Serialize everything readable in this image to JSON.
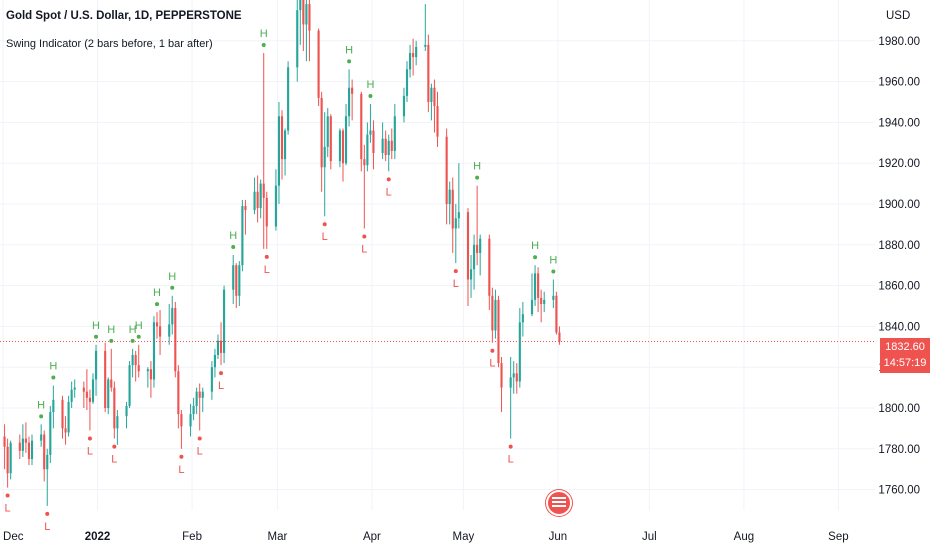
{
  "header": {
    "title": "Gold Spot / U.S. Dollar, 1D, PEPPERSTONE",
    "indicator": "Swing Indicator (2 bars before, 1 bar after)"
  },
  "axis": {
    "currency": "USD",
    "y_ticks": [
      "1980.00",
      "1960.00",
      "1940.00",
      "1920.00",
      "1900.00",
      "1880.00",
      "1860.00",
      "1840.00",
      "1820.00",
      "1800.00",
      "1780.00",
      "1760.00"
    ],
    "x_ticks": [
      "Dec",
      "2022",
      "Feb",
      "Mar",
      "Apr",
      "May",
      "Jun",
      "Jul",
      "Aug",
      "Sep"
    ]
  },
  "last_price": {
    "price": "1832.60",
    "countdown": "14:57:19"
  },
  "colors": {
    "up": "#26a69a",
    "down": "#ef5350",
    "high_label": "#4caf50",
    "low_label": "#ef5350",
    "grid": "#f0f3fa",
    "text": "#131722"
  },
  "chart_data": {
    "type": "candlestick",
    "title": "Gold Spot / U.S. Dollar, 1D, PEPPERSTONE",
    "currency": "USD",
    "ylim": [
      1750,
      2000
    ],
    "x_range": [
      "2021-11-30",
      "2022-09-13"
    ],
    "x_ticks": [
      "Dec",
      "2022",
      "Feb",
      "Mar",
      "Apr",
      "May",
      "Jun",
      "Jul",
      "Aug",
      "Sep"
    ],
    "last_price": 1832.6,
    "candles": [
      {
        "date": "2021-12-01",
        "o": 1786,
        "h": 1792,
        "l": 1770,
        "c": 1781
      },
      {
        "date": "2021-12-02",
        "o": 1781,
        "h": 1785,
        "l": 1761,
        "c": 1768
      },
      {
        "date": "2021-12-03",
        "o": 1768,
        "h": 1784,
        "l": 1765,
        "c": 1783
      },
      {
        "date": "2021-12-06",
        "o": 1783,
        "h": 1787,
        "l": 1775,
        "c": 1779
      },
      {
        "date": "2021-12-07",
        "o": 1779,
        "h": 1792,
        "l": 1776,
        "c": 1785
      },
      {
        "date": "2021-12-08",
        "o": 1785,
        "h": 1793,
        "l": 1778,
        "c": 1783
      },
      {
        "date": "2021-12-09",
        "o": 1783,
        "h": 1786,
        "l": 1772,
        "c": 1775
      },
      {
        "date": "2021-12-10",
        "o": 1775,
        "h": 1787,
        "l": 1772,
        "c": 1784
      },
      {
        "date": "2021-12-13",
        "o": 1784,
        "h": 1792,
        "l": 1781,
        "c": 1787
      },
      {
        "date": "2021-12-14",
        "o": 1787,
        "h": 1789,
        "l": 1764,
        "c": 1770
      },
      {
        "date": "2021-12-15",
        "o": 1770,
        "h": 1780,
        "l": 1752,
        "c": 1777
      },
      {
        "date": "2021-12-16",
        "o": 1777,
        "h": 1801,
        "l": 1773,
        "c": 1798
      },
      {
        "date": "2021-12-17",
        "o": 1798,
        "h": 1811,
        "l": 1790,
        "c": 1804
      },
      {
        "date": "2021-12-20",
        "o": 1804,
        "h": 1806,
        "l": 1785,
        "c": 1790
      },
      {
        "date": "2021-12-21",
        "o": 1790,
        "h": 1796,
        "l": 1782,
        "c": 1788
      },
      {
        "date": "2021-12-22",
        "o": 1788,
        "h": 1806,
        "l": 1786,
        "c": 1803
      },
      {
        "date": "2021-12-23",
        "o": 1803,
        "h": 1813,
        "l": 1800,
        "c": 1809
      },
      {
        "date": "2021-12-24",
        "o": 1809,
        "h": 1814,
        "l": 1805,
        "c": 1810
      },
      {
        "date": "2021-12-27",
        "o": 1810,
        "h": 1813,
        "l": 1800,
        "c": 1808
      },
      {
        "date": "2021-12-28",
        "o": 1808,
        "h": 1819,
        "l": 1799,
        "c": 1805
      },
      {
        "date": "2021-12-29",
        "o": 1805,
        "h": 1809,
        "l": 1789,
        "c": 1803
      },
      {
        "date": "2021-12-30",
        "o": 1803,
        "h": 1817,
        "l": 1802,
        "c": 1814
      },
      {
        "date": "2021-12-31",
        "o": 1814,
        "h": 1831,
        "l": 1806,
        "c": 1828
      },
      {
        "date": "2022-01-03",
        "o": 1828,
        "h": 1832,
        "l": 1798,
        "c": 1800
      },
      {
        "date": "2022-01-04",
        "o": 1800,
        "h": 1815,
        "l": 1797,
        "c": 1814
      },
      {
        "date": "2022-01-05",
        "o": 1814,
        "h": 1829,
        "l": 1808,
        "c": 1810
      },
      {
        "date": "2022-01-06",
        "o": 1810,
        "h": 1813,
        "l": 1785,
        "c": 1790
      },
      {
        "date": "2022-01-07",
        "o": 1790,
        "h": 1799,
        "l": 1782,
        "c": 1796
      },
      {
        "date": "2022-01-10",
        "o": 1796,
        "h": 1803,
        "l": 1790,
        "c": 1801
      },
      {
        "date": "2022-01-11",
        "o": 1801,
        "h": 1823,
        "l": 1800,
        "c": 1821
      },
      {
        "date": "2022-01-12",
        "o": 1821,
        "h": 1829,
        "l": 1815,
        "c": 1826
      },
      {
        "date": "2022-01-13",
        "o": 1826,
        "h": 1828,
        "l": 1813,
        "c": 1821
      },
      {
        "date": "2022-01-14",
        "o": 1821,
        "h": 1831,
        "l": 1815,
        "c": 1818
      },
      {
        "date": "2022-01-17",
        "o": 1818,
        "h": 1820,
        "l": 1810,
        "c": 1819
      },
      {
        "date": "2022-01-18",
        "o": 1819,
        "h": 1823,
        "l": 1805,
        "c": 1814
      },
      {
        "date": "2022-01-19",
        "o": 1814,
        "h": 1845,
        "l": 1810,
        "c": 1842
      },
      {
        "date": "2022-01-20",
        "o": 1842,
        "h": 1847,
        "l": 1834,
        "c": 1840
      },
      {
        "date": "2022-01-21",
        "o": 1840,
        "h": 1848,
        "l": 1826,
        "c": 1835
      },
      {
        "date": "2022-01-24",
        "o": 1835,
        "h": 1851,
        "l": 1831,
        "c": 1841
      },
      {
        "date": "2022-01-25",
        "o": 1841,
        "h": 1855,
        "l": 1836,
        "c": 1849
      },
      {
        "date": "2022-01-26",
        "o": 1849,
        "h": 1852,
        "l": 1815,
        "c": 1818
      },
      {
        "date": "2022-01-27",
        "o": 1818,
        "h": 1821,
        "l": 1790,
        "c": 1797
      },
      {
        "date": "2022-01-28",
        "o": 1797,
        "h": 1799,
        "l": 1780,
        "c": 1791
      },
      {
        "date": "2022-01-31",
        "o": 1791,
        "h": 1802,
        "l": 1786,
        "c": 1797
      },
      {
        "date": "2022-02-01",
        "o": 1797,
        "h": 1805,
        "l": 1794,
        "c": 1801
      },
      {
        "date": "2022-02-02",
        "o": 1801,
        "h": 1810,
        "l": 1797,
        "c": 1808
      },
      {
        "date": "2022-02-03",
        "o": 1808,
        "h": 1812,
        "l": 1789,
        "c": 1805
      },
      {
        "date": "2022-02-04",
        "o": 1805,
        "h": 1810,
        "l": 1798,
        "c": 1808
      },
      {
        "date": "2022-02-07",
        "o": 1808,
        "h": 1823,
        "l": 1804,
        "c": 1820
      },
      {
        "date": "2022-02-08",
        "o": 1820,
        "h": 1829,
        "l": 1815,
        "c": 1826
      },
      {
        "date": "2022-02-09",
        "o": 1826,
        "h": 1836,
        "l": 1824,
        "c": 1833
      },
      {
        "date": "2022-02-10",
        "o": 1833,
        "h": 1842,
        "l": 1821,
        "c": 1827
      },
      {
        "date": "2022-02-11",
        "o": 1827,
        "h": 1860,
        "l": 1822,
        "c": 1858
      },
      {
        "date": "2022-02-14",
        "o": 1858,
        "h": 1875,
        "l": 1851,
        "c": 1870
      },
      {
        "date": "2022-02-15",
        "o": 1870,
        "h": 1871,
        "l": 1849,
        "c": 1855
      },
      {
        "date": "2022-02-16",
        "o": 1855,
        "h": 1872,
        "l": 1850,
        "c": 1870
      },
      {
        "date": "2022-02-17",
        "o": 1870,
        "h": 1902,
        "l": 1867,
        "c": 1899
      },
      {
        "date": "2022-02-18",
        "o": 1899,
        "h": 1902,
        "l": 1885,
        "c": 1897
      },
      {
        "date": "2022-02-21",
        "o": 1897,
        "h": 1913,
        "l": 1895,
        "c": 1906
      },
      {
        "date": "2022-02-22",
        "o": 1906,
        "h": 1914,
        "l": 1891,
        "c": 1898
      },
      {
        "date": "2022-02-23",
        "o": 1898,
        "h": 1912,
        "l": 1893,
        "c": 1910
      },
      {
        "date": "2022-02-24",
        "o": 1910,
        "h": 1974,
        "l": 1878,
        "c": 1903
      },
      {
        "date": "2022-02-25",
        "o": 1903,
        "h": 1906,
        "l": 1878,
        "c": 1889
      },
      {
        "date": "2022-02-28",
        "o": 1889,
        "h": 1917,
        "l": 1887,
        "c": 1909
      },
      {
        "date": "2022-03-01",
        "o": 1909,
        "h": 1950,
        "l": 1900,
        "c": 1943
      },
      {
        "date": "2022-03-02",
        "o": 1943,
        "h": 1946,
        "l": 1912,
        "c": 1922
      },
      {
        "date": "2022-03-03",
        "o": 1922,
        "h": 1937,
        "l": 1914,
        "c": 1936
      },
      {
        "date": "2022-03-04",
        "o": 1936,
        "h": 1970,
        "l": 1934,
        "c": 1967
      },
      {
        "date": "2022-03-07",
        "o": 1967,
        "h": 2001,
        "l": 1960,
        "c": 1995
      },
      {
        "date": "2022-03-08",
        "o": 1995,
        "h": 2002,
        "l": 1978,
        "c": 2000
      },
      {
        "date": "2022-03-09",
        "o": 2000,
        "h": 2000,
        "l": 1975,
        "c": 1988
      },
      {
        "date": "2022-03-10",
        "o": 1988,
        "h": 2001,
        "l": 1970,
        "c": 1998
      },
      {
        "date": "2022-03-11",
        "o": 1998,
        "h": 2000,
        "l": 1970,
        "c": 1985
      },
      {
        "date": "2022-03-14",
        "o": 1985,
        "h": 1986,
        "l": 1948,
        "c": 1952
      },
      {
        "date": "2022-03-15",
        "o": 1952,
        "h": 1955,
        "l": 1906,
        "c": 1918
      },
      {
        "date": "2022-03-16",
        "o": 1918,
        "h": 1945,
        "l": 1894,
        "c": 1928
      },
      {
        "date": "2022-03-17",
        "o": 1928,
        "h": 1947,
        "l": 1923,
        "c": 1943
      },
      {
        "date": "2022-03-18",
        "o": 1943,
        "h": 1944,
        "l": 1917,
        "c": 1921
      },
      {
        "date": "2022-03-21",
        "o": 1921,
        "h": 1937,
        "l": 1918,
        "c": 1936
      },
      {
        "date": "2022-03-22",
        "o": 1936,
        "h": 1937,
        "l": 1911,
        "c": 1920
      },
      {
        "date": "2022-03-23",
        "o": 1920,
        "h": 1949,
        "l": 1919,
        "c": 1943
      },
      {
        "date": "2022-03-24",
        "o": 1943,
        "h": 1966,
        "l": 1938,
        "c": 1957
      },
      {
        "date": "2022-03-25",
        "o": 1957,
        "h": 1961,
        "l": 1941,
        "c": 1954
      },
      {
        "date": "2022-03-28",
        "o": 1954,
        "h": 1955,
        "l": 1916,
        "c": 1922
      },
      {
        "date": "2022-03-29",
        "o": 1922,
        "h": 1929,
        "l": 1888,
        "c": 1919
      },
      {
        "date": "2022-03-30",
        "o": 1919,
        "h": 1940,
        "l": 1916,
        "c": 1934
      },
      {
        "date": "2022-03-31",
        "o": 1934,
        "h": 1949,
        "l": 1930,
        "c": 1936
      },
      {
        "date": "2022-04-01",
        "o": 1936,
        "h": 1941,
        "l": 1917,
        "c": 1925
      },
      {
        "date": "2022-04-04",
        "o": 1925,
        "h": 1940,
        "l": 1922,
        "c": 1932
      },
      {
        "date": "2022-04-05",
        "o": 1932,
        "h": 1936,
        "l": 1921,
        "c": 1924
      },
      {
        "date": "2022-04-06",
        "o": 1924,
        "h": 1934,
        "l": 1916,
        "c": 1931
      },
      {
        "date": "2022-04-07",
        "o": 1931,
        "h": 1937,
        "l": 1922,
        "c": 1926
      },
      {
        "date": "2022-04-08",
        "o": 1926,
        "h": 1949,
        "l": 1922,
        "c": 1943
      },
      {
        "date": "2022-04-11",
        "o": 1943,
        "h": 1957,
        "l": 1940,
        "c": 1953
      },
      {
        "date": "2022-04-12",
        "o": 1953,
        "h": 1970,
        "l": 1950,
        "c": 1966
      },
      {
        "date": "2022-04-13",
        "o": 1966,
        "h": 1978,
        "l": 1962,
        "c": 1974
      },
      {
        "date": "2022-04-14",
        "o": 1974,
        "h": 1981,
        "l": 1963,
        "c": 1972
      },
      {
        "date": "2022-04-15",
        "o": 1972,
        "h": 1980,
        "l": 1968,
        "c": 1977
      },
      {
        "date": "2022-04-18",
        "o": 1977,
        "h": 1998,
        "l": 1975,
        "c": 1978
      },
      {
        "date": "2022-04-19",
        "o": 1978,
        "h": 1983,
        "l": 1945,
        "c": 1950
      },
      {
        "date": "2022-04-20",
        "o": 1950,
        "h": 1959,
        "l": 1941,
        "c": 1957
      },
      {
        "date": "2022-04-21",
        "o": 1957,
        "h": 1961,
        "l": 1935,
        "c": 1948
      },
      {
        "date": "2022-04-22",
        "o": 1948,
        "h": 1955,
        "l": 1928,
        "c": 1933
      },
      {
        "date": "2022-04-25",
        "o": 1933,
        "h": 1937,
        "l": 1890,
        "c": 1900
      },
      {
        "date": "2022-04-26",
        "o": 1900,
        "h": 1911,
        "l": 1890,
        "c": 1907
      },
      {
        "date": "2022-04-27",
        "o": 1907,
        "h": 1913,
        "l": 1876,
        "c": 1888
      },
      {
        "date": "2022-04-28",
        "o": 1888,
        "h": 1900,
        "l": 1871,
        "c": 1893
      },
      {
        "date": "2022-04-29",
        "o": 1893,
        "h": 1920,
        "l": 1888,
        "c": 1896
      },
      {
        "date": "2022-05-02",
        "o": 1896,
        "h": 1898,
        "l": 1850,
        "c": 1863
      },
      {
        "date": "2022-05-03",
        "o": 1863,
        "h": 1875,
        "l": 1854,
        "c": 1868
      },
      {
        "date": "2022-05-04",
        "o": 1868,
        "h": 1885,
        "l": 1858,
        "c": 1880
      },
      {
        "date": "2022-05-05",
        "o": 1880,
        "h": 1909,
        "l": 1870,
        "c": 1876
      },
      {
        "date": "2022-05-06",
        "o": 1876,
        "h": 1885,
        "l": 1865,
        "c": 1883
      },
      {
        "date": "2022-05-09",
        "o": 1883,
        "h": 1885,
        "l": 1848,
        "c": 1855
      },
      {
        "date": "2022-05-10",
        "o": 1855,
        "h": 1859,
        "l": 1832,
        "c": 1838
      },
      {
        "date": "2022-05-11",
        "o": 1838,
        "h": 1858,
        "l": 1834,
        "c": 1853
      },
      {
        "date": "2022-05-12",
        "o": 1853,
        "h": 1855,
        "l": 1820,
        "c": 1822
      },
      {
        "date": "2022-05-13",
        "o": 1822,
        "h": 1825,
        "l": 1798,
        "c": 1810
      },
      {
        "date": "2022-05-16",
        "o": 1810,
        "h": 1825,
        "l": 1785,
        "c": 1815
      },
      {
        "date": "2022-05-17",
        "o": 1815,
        "h": 1823,
        "l": 1807,
        "c": 1817
      },
      {
        "date": "2022-05-18",
        "o": 1817,
        "h": 1822,
        "l": 1807,
        "c": 1813
      },
      {
        "date": "2022-05-19",
        "o": 1813,
        "h": 1849,
        "l": 1810,
        "c": 1842
      },
      {
        "date": "2022-05-20",
        "o": 1842,
        "h": 1852,
        "l": 1835,
        "c": 1846
      },
      {
        "date": "2022-05-23",
        "o": 1846,
        "h": 1866,
        "l": 1845,
        "c": 1853
      },
      {
        "date": "2022-05-24",
        "o": 1853,
        "h": 1870,
        "l": 1850,
        "c": 1866
      },
      {
        "date": "2022-05-25",
        "o": 1866,
        "h": 1869,
        "l": 1847,
        "c": 1854
      },
      {
        "date": "2022-05-26",
        "o": 1854,
        "h": 1858,
        "l": 1842,
        "c": 1851
      },
      {
        "date": "2022-05-27",
        "o": 1851,
        "h": 1857,
        "l": 1847,
        "c": 1853
      },
      {
        "date": "2022-05-30",
        "o": 1853,
        "h": 1863,
        "l": 1849,
        "c": 1855
      },
      {
        "date": "2022-05-31",
        "o": 1855,
        "h": 1857,
        "l": 1836,
        "c": 1837
      },
      {
        "date": "2022-06-01",
        "o": 1837,
        "h": 1840,
        "l": 1831,
        "c": 1832.6
      }
    ],
    "swing_highs": [
      {
        "date": "2021-12-13",
        "price": 1792
      },
      {
        "date": "2021-12-17",
        "price": 1811
      },
      {
        "date": "2021-12-31",
        "price": 1831
      },
      {
        "date": "2022-01-05",
        "price": 1829
      },
      {
        "date": "2022-01-12",
        "price": 1829
      },
      {
        "date": "2022-01-14",
        "price": 1831
      },
      {
        "date": "2022-01-20",
        "price": 1847
      },
      {
        "date": "2022-01-25",
        "price": 1855
      },
      {
        "date": "2022-02-14",
        "price": 1875
      },
      {
        "date": "2022-02-24",
        "price": 1974
      },
      {
        "date": "2022-03-08",
        "price": 2002
      },
      {
        "date": "2022-03-24",
        "price": 1966
      },
      {
        "date": "2022-03-31",
        "price": 1949
      },
      {
        "date": "2022-04-18",
        "price": 1998
      },
      {
        "date": "2022-05-05",
        "price": 1909
      },
      {
        "date": "2022-05-24",
        "price": 1870
      },
      {
        "date": "2022-05-30",
        "price": 1863
      }
    ],
    "swing_lows": [
      {
        "date": "2021-12-02",
        "price": 1761
      },
      {
        "date": "2021-12-15",
        "price": 1752
      },
      {
        "date": "2021-12-29",
        "price": 1789
      },
      {
        "date": "2022-01-06",
        "price": 1785
      },
      {
        "date": "2022-01-28",
        "price": 1780
      },
      {
        "date": "2022-02-03",
        "price": 1789
      },
      {
        "date": "2022-02-10",
        "price": 1821
      },
      {
        "date": "2022-02-25",
        "price": 1878
      },
      {
        "date": "2022-03-16",
        "price": 1894
      },
      {
        "date": "2022-03-29",
        "price": 1888
      },
      {
        "date": "2022-04-06",
        "price": 1916
      },
      {
        "date": "2022-04-28",
        "price": 1871
      },
      {
        "date": "2022-05-10",
        "price": 1832
      },
      {
        "date": "2022-05-16",
        "price": 1785
      }
    ]
  }
}
